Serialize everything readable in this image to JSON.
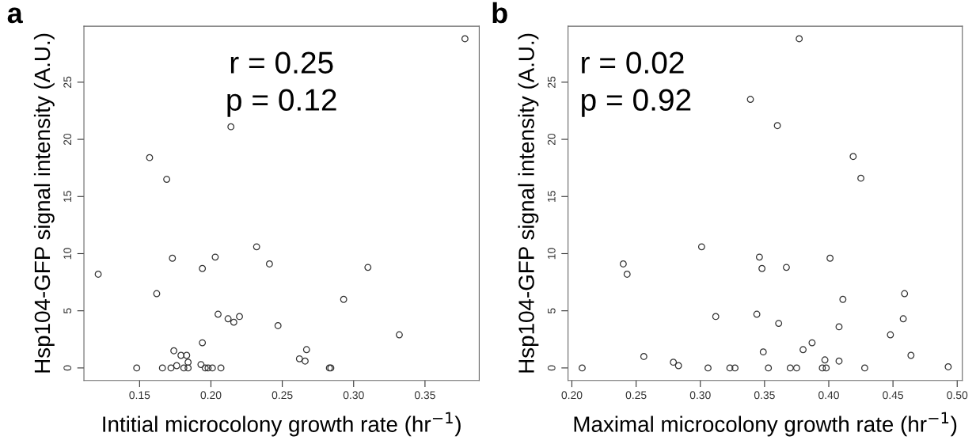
{
  "chart_data": [
    {
      "type": "scatter",
      "xlabel": "Intitial microcolony growth rate (hr$^{−1}$)",
      "ylabel": "Hsp104-GFP signal intensity (A.U.)",
      "annotations": [
        "a",
        "r = 0.25",
        "p = 0.12"
      ],
      "xlim": [
        0.111,
        0.388
      ],
      "ylim": [
        -1.1,
        29.9
      ],
      "xticks": [
        {
          "value": 0.15,
          "label": "0.15"
        },
        {
          "value": 0.2,
          "label": "0.20"
        },
        {
          "value": 0.25,
          "label": "0.25"
        },
        {
          "value": 0.3,
          "label": "0.30"
        },
        {
          "value": 0.35,
          "label": "0.35"
        }
      ],
      "yticks": [
        0,
        5,
        10,
        15,
        20,
        25
      ],
      "grid": false,
      "marker": "circle",
      "series": [
        {
          "color": "#333333",
          "x": [
            0.378,
            0.214,
            0.157,
            0.169,
            0.121,
            0.162,
            0.173,
            0.194,
            0.203,
            0.232,
            0.241,
            0.31,
            0.293,
            0.205,
            0.212,
            0.216,
            0.22,
            0.247,
            0.332,
            0.194,
            0.174,
            0.179,
            0.183,
            0.184,
            0.176,
            0.193,
            0.267,
            0.262,
            0.266,
            0.148,
            0.166,
            0.172,
            0.181,
            0.184,
            0.196,
            0.198,
            0.201,
            0.207,
            0.283,
            0.284
          ],
          "values": [
            28.8,
            21.1,
            18.4,
            16.5,
            8.2,
            6.5,
            9.6,
            8.7,
            9.7,
            10.6,
            9.1,
            8.8,
            6.0,
            4.7,
            4.3,
            4.0,
            4.5,
            3.7,
            2.9,
            2.2,
            1.5,
            1.1,
            1.1,
            0.5,
            0.2,
            0.3,
            1.6,
            0.8,
            0.6,
            0,
            0,
            0,
            0,
            0,
            0,
            0,
            0,
            0,
            0,
            0
          ]
        }
      ]
    },
    {
      "type": "scatter",
      "xlabel": "Maximal microcolony growth rate (hr$^{−1}$)",
      "ylabel": "Hsp104-GFP signal intensity (A.U.)",
      "annotations": [
        "b",
        "r = 0.02",
        "p = 0.92"
      ],
      "xlim": [
        0.197,
        0.504
      ],
      "ylim": [
        -1.1,
        29.9
      ],
      "xticks": [
        {
          "value": 0.2,
          "label": "0.20"
        },
        {
          "value": 0.25,
          "label": "0.25"
        },
        {
          "value": 0.3,
          "label": "0.30"
        },
        {
          "value": 0.35,
          "label": "0.35"
        },
        {
          "value": 0.4,
          "label": "0.40"
        },
        {
          "value": 0.45,
          "label": "0.45"
        },
        {
          "value": 0.5,
          "label": "0.50"
        }
      ],
      "yticks": [
        0,
        5,
        10,
        15,
        20,
        25
      ],
      "grid": false,
      "marker": "circle",
      "series": [
        {
          "color": "#333333",
          "x": [
            0.377,
            0.339,
            0.36,
            0.419,
            0.425,
            0.208,
            0.24,
            0.243,
            0.256,
            0.279,
            0.283,
            0.301,
            0.306,
            0.312,
            0.323,
            0.327,
            0.344,
            0.346,
            0.348,
            0.349,
            0.353,
            0.361,
            0.367,
            0.37,
            0.375,
            0.38,
            0.387,
            0.395,
            0.398,
            0.397,
            0.401,
            0.408,
            0.408,
            0.411,
            0.428,
            0.448,
            0.458,
            0.459,
            0.464,
            0.493
          ],
          "values": [
            28.8,
            23.5,
            21.2,
            18.5,
            16.6,
            0,
            9.1,
            8.2,
            1.0,
            0.5,
            0.2,
            10.6,
            0,
            4.5,
            0,
            0,
            4.7,
            9.7,
            8.7,
            1.4,
            0,
            3.9,
            8.8,
            0,
            0,
            1.6,
            2.2,
            0,
            0,
            0.7,
            9.6,
            0.6,
            3.6,
            6.0,
            0,
            2.9,
            4.3,
            6.5,
            1.1,
            0.1
          ]
        }
      ]
    }
  ]
}
